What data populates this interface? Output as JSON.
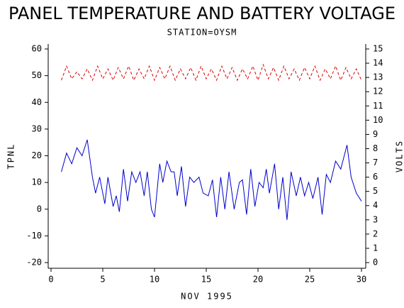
{
  "chart_data": {
    "type": "line",
    "title": "PANEL TEMPERATURE AND BATTERY VOLTAGE",
    "subtitle": "STATION=OYSM",
    "x_label": "NOV 1995",
    "y_label": "TPNL",
    "y2_label": "VOLTS",
    "xlim": [
      0,
      30
    ],
    "xticks": [
      0,
      5,
      10,
      15,
      20,
      25,
      30
    ],
    "ylim": [
      -20,
      60
    ],
    "yticks": [
      -20,
      -10,
      0,
      10,
      20,
      30,
      40,
      50,
      60
    ],
    "y2lim": [
      0,
      15
    ],
    "y2ticks": [
      0,
      1,
      2,
      3,
      4,
      5,
      6,
      7,
      8,
      9,
      10,
      11,
      12,
      13,
      14,
      15
    ],
    "series": [
      {
        "name": "TPNL",
        "color": "#0000cc",
        "x": [
          1,
          1.5,
          2,
          2.5,
          3,
          3.5,
          4,
          4.3,
          4.7,
          5.2,
          5.5,
          6,
          6.3,
          6.6,
          7,
          7.4,
          7.8,
          8.2,
          8.6,
          9,
          9.3,
          9.7,
          10,
          10.5,
          10.8,
          11.2,
          11.6,
          11.9,
          12.2,
          12.6,
          13,
          13.4,
          13.8,
          14.3,
          14.7,
          15.2,
          15.6,
          16,
          16.4,
          16.8,
          17.2,
          17.7,
          18.2,
          18.5,
          18.9,
          19.3,
          19.7,
          20.1,
          20.5,
          20.8,
          21.1,
          21.6,
          22,
          22.4,
          22.8,
          23.2,
          23.7,
          24.1,
          24.5,
          24.9,
          25.3,
          25.8,
          26.2,
          26.6,
          27,
          27.5,
          28,
          28.6,
          29,
          29.5,
          30
        ],
        "values": [
          14,
          21,
          17,
          23,
          20,
          26,
          12,
          6,
          12,
          2,
          12,
          1,
          5,
          -1,
          15,
          3,
          14,
          10,
          14,
          5,
          14,
          0,
          -3,
          17,
          10,
          18,
          14,
          14,
          5,
          16,
          1,
          12,
          10,
          12,
          6,
          5,
          11,
          -3,
          12,
          0,
          14,
          0,
          10,
          11,
          -2,
          15,
          1,
          10,
          8,
          15,
          6,
          17,
          0,
          12,
          -4,
          14,
          5,
          12,
          5,
          10,
          4,
          12,
          -2,
          13,
          10,
          18,
          15,
          24,
          12,
          6,
          3
        ]
      },
      {
        "name": "VOLTS",
        "color": "#dd0000",
        "axis": "y2",
        "x": [
          1,
          1.5,
          2,
          2.5,
          3,
          3.5,
          4,
          4.5,
          5,
          5.5,
          6,
          6.5,
          7,
          7.5,
          8,
          8.5,
          9,
          9.5,
          10,
          10.5,
          11,
          11.5,
          12,
          12.5,
          13,
          13.5,
          14,
          14.5,
          15,
          15.5,
          16,
          16.5,
          17,
          17.5,
          18,
          18.5,
          19,
          19.5,
          20,
          20.5,
          21,
          21.5,
          22,
          22.5,
          23,
          23.5,
          24,
          24.5,
          25,
          25.5,
          26,
          26.5,
          27,
          27.5,
          28,
          28.5,
          29,
          29.5,
          30
        ],
        "values": [
          12.8,
          13.8,
          12.9,
          13.4,
          12.9,
          13.6,
          12.8,
          13.8,
          12.9,
          13.6,
          12.8,
          13.7,
          12.9,
          13.8,
          12.8,
          13.6,
          12.9,
          13.8,
          12.8,
          13.7,
          12.9,
          13.8,
          12.8,
          13.6,
          12.9,
          13.7,
          12.8,
          13.8,
          12.9,
          13.6,
          12.8,
          13.8,
          12.9,
          13.7,
          12.8,
          13.6,
          12.9,
          13.8,
          12.8,
          13.9,
          12.9,
          13.7,
          12.8,
          13.8,
          12.9,
          13.6,
          12.8,
          13.7,
          12.9,
          13.8,
          12.8,
          13.6,
          12.9,
          13.8,
          12.8,
          13.7,
          12.9,
          13.6,
          12.8
        ]
      }
    ]
  }
}
